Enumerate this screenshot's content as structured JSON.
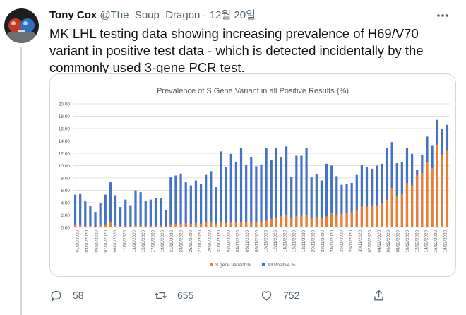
{
  "tweet": {
    "author_name": "Tony Cox",
    "handle": "@The_Soup_Dragon",
    "separator": "·",
    "date": "12월 20일",
    "text": "MK LHL testing data showing increasing prevalence of H69/V70 variant in positive test data - which is detected incidentally by the commonly used 3-gene PCR test."
  },
  "actions": {
    "reply_count": "58",
    "retweet_count": "655",
    "like_count": "752"
  },
  "icons": {
    "more": "more-icon",
    "reply": "reply-icon",
    "retweet": "retweet-icon",
    "like": "like-icon",
    "share": "share-icon"
  },
  "colors": {
    "all_positive": "#4472c4",
    "s_gene": "#ed7d31",
    "action_grey": "#536471"
  },
  "chart_data": {
    "type": "bar",
    "title": "Prevalence of S Gene Variant in all Positive Results (%)",
    "ylim": [
      0,
      20
    ],
    "yticks": [
      "0.00",
      "2.00",
      "4.00",
      "6.00",
      "8.00",
      "10.00",
      "12.00",
      "14.00",
      "16.00",
      "18.00",
      "20.00"
    ],
    "xtick_labels": [
      "01/10/2020",
      "03/10/2020",
      "05/10/2020",
      "07/10/2020",
      "09/10/2020",
      "11/10/2020",
      "13/10/2020",
      "15/10/2020",
      "17/10/2020",
      "19/10/2020",
      "21/10/2020",
      "23/10/2020",
      "25/10/2020",
      "27/10/2020",
      "29/10/2020",
      "31/10/2020",
      "02/11/2020",
      "04/11/2020",
      "06/11/2020",
      "08/11/2020",
      "10/11/2020",
      "12/11/2020",
      "14/11/2020",
      "16/11/2020",
      "18/11/2020",
      "20/11/2020",
      "22/11/2020",
      "24/11/2020",
      "26/11/2020",
      "28/11/2020",
      "30/11/2020",
      "02/12/2020",
      "04/12/2020",
      "06/12/2020",
      "08/12/2020",
      "10/12/2020",
      "12/12/2020",
      "14/12/2020",
      "16/12/2020",
      "18/12/2020"
    ],
    "series": [
      {
        "name": "All Positive %",
        "values": [
          5.3,
          5.5,
          4.2,
          3.5,
          2.5,
          3.9,
          5.3,
          7.3,
          5.2,
          3.3,
          4.5,
          3.6,
          6.0,
          5.7,
          4.3,
          4.5,
          4.7,
          4.8,
          2.8,
          8.1,
          8.4,
          8.7,
          7.3,
          6.8,
          7.6,
          7.0,
          8.5,
          9.1,
          6.5,
          12.3,
          9.8,
          11.9,
          10.6,
          12.8,
          10.1,
          11.4,
          9.9,
          10.2,
          12.8,
          10.9,
          12.9,
          11.3,
          13.1,
          8.2,
          11.6,
          11.6,
          12.9,
          8.1,
          8.6,
          7.6,
          10.3,
          10.0,
          8.3,
          6.9,
          7.0,
          7.2,
          8.5,
          10.1,
          9.8,
          9.5,
          10.0,
          10.3,
          12.9,
          13.8,
          10.4,
          10.6,
          12.8,
          11.9,
          9.3,
          11.7,
          14.7,
          13.2,
          17.4,
          15.9,
          16.6
        ]
      },
      {
        "name": "S gene Variant %",
        "values": [
          0.5,
          0.3,
          0.2,
          0.3,
          0.1,
          0.4,
          0.5,
          0.8,
          0.3,
          0.2,
          0.2,
          0.2,
          0.3,
          0.3,
          0.2,
          0.3,
          0.2,
          0.3,
          0.2,
          0.5,
          0.6,
          0.6,
          0.7,
          0.6,
          0.7,
          0.6,
          0.8,
          0.8,
          0.6,
          0.9,
          0.7,
          0.8,
          0.8,
          0.9,
          0.8,
          0.9,
          0.8,
          0.9,
          1.2,
          1.4,
          1.6,
          1.8,
          2.0,
          1.5,
          1.8,
          1.9,
          2.0,
          1.6,
          1.7,
          1.5,
          1.8,
          2.4,
          2.0,
          2.2,
          2.4,
          2.5,
          2.8,
          3.5,
          3.4,
          3.6,
          3.6,
          4.0,
          4.5,
          6.4,
          5.0,
          5.5,
          7.2,
          6.8,
          8.5,
          8.8,
          10.5,
          9.6,
          13.4,
          11.8,
          12.4
        ]
      }
    ],
    "legend": [
      "S gene Variant %",
      "All Positive %"
    ]
  }
}
